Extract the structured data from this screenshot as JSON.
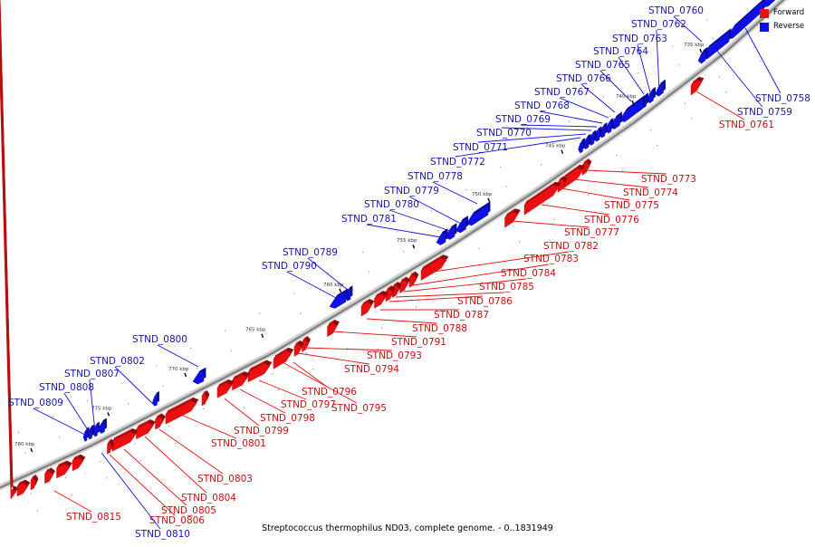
{
  "caption": "Streptococcus thermophilus ND03, complete genome. - 0..1831949",
  "legend": [
    {
      "label": "Forward",
      "color": "#e81010"
    },
    {
      "label": "Reverse",
      "color": "#1010e6"
    }
  ],
  "colors": {
    "forward": "#e81010",
    "reverse": "#1010e6",
    "backbone": "#888888",
    "forward_label": "#c41010",
    "reverse_label": "#1515b0"
  },
  "ticks": [
    {
      "label": "735 kbp",
      "pos_kbp": 735
    },
    {
      "label": "740 kbp",
      "pos_kbp": 740
    },
    {
      "label": "745 kbp",
      "pos_kbp": 745
    },
    {
      "label": "750 kbp",
      "pos_kbp": 750
    },
    {
      "label": "755 kbp",
      "pos_kbp": 755
    },
    {
      "label": "760 kbp",
      "pos_kbp": 760
    },
    {
      "label": "765 kbp",
      "pos_kbp": 765
    },
    {
      "label": "770 kbp",
      "pos_kbp": 770
    },
    {
      "label": "775 kbp",
      "pos_kbp": 775
    },
    {
      "label": "780 kbp",
      "pos_kbp": 780
    }
  ],
  "genes": [
    {
      "name": "STND_0758",
      "strand": "reverse"
    },
    {
      "name": "STND_0759",
      "strand": "reverse"
    },
    {
      "name": "STND_0760",
      "strand": "reverse"
    },
    {
      "name": "STND_0761",
      "strand": "forward"
    },
    {
      "name": "STND_0762",
      "strand": "reverse"
    },
    {
      "name": "STND_0763",
      "strand": "reverse"
    },
    {
      "name": "STND_0764",
      "strand": "reverse"
    },
    {
      "name": "STND_0765",
      "strand": "reverse"
    },
    {
      "name": "STND_0766",
      "strand": "reverse"
    },
    {
      "name": "STND_0767",
      "strand": "reverse"
    },
    {
      "name": "STND_0768",
      "strand": "reverse"
    },
    {
      "name": "STND_0769",
      "strand": "reverse"
    },
    {
      "name": "STND_0770",
      "strand": "reverse"
    },
    {
      "name": "STND_0771",
      "strand": "reverse"
    },
    {
      "name": "STND_0772",
      "strand": "reverse"
    },
    {
      "name": "STND_0773",
      "strand": "forward"
    },
    {
      "name": "STND_0774",
      "strand": "forward"
    },
    {
      "name": "STND_0775",
      "strand": "forward"
    },
    {
      "name": "STND_0776",
      "strand": "forward"
    },
    {
      "name": "STND_0777",
      "strand": "forward"
    },
    {
      "name": "STND_0778",
      "strand": "reverse"
    },
    {
      "name": "STND_0779",
      "strand": "reverse"
    },
    {
      "name": "STND_0780",
      "strand": "reverse"
    },
    {
      "name": "STND_0781",
      "strand": "reverse"
    },
    {
      "name": "STND_0782",
      "strand": "forward"
    },
    {
      "name": "STND_0783",
      "strand": "forward"
    },
    {
      "name": "STND_0784",
      "strand": "forward"
    },
    {
      "name": "STND_0785",
      "strand": "forward"
    },
    {
      "name": "STND_0786",
      "strand": "forward"
    },
    {
      "name": "STND_0787",
      "strand": "forward"
    },
    {
      "name": "STND_0788",
      "strand": "forward"
    },
    {
      "name": "STND_0789",
      "strand": "reverse"
    },
    {
      "name": "STND_0790",
      "strand": "reverse"
    },
    {
      "name": "STND_0791",
      "strand": "forward"
    },
    {
      "name": "STND_0793",
      "strand": "forward"
    },
    {
      "name": "STND_0794",
      "strand": "forward"
    },
    {
      "name": "STND_0795",
      "strand": "forward"
    },
    {
      "name": "STND_0796",
      "strand": "forward"
    },
    {
      "name": "STND_0797",
      "strand": "forward"
    },
    {
      "name": "STND_0798",
      "strand": "forward"
    },
    {
      "name": "STND_0799",
      "strand": "forward"
    },
    {
      "name": "STND_0800",
      "strand": "reverse"
    },
    {
      "name": "STND_0801",
      "strand": "forward"
    },
    {
      "name": "STND_0802",
      "strand": "reverse"
    },
    {
      "name": "STND_0803",
      "strand": "forward"
    },
    {
      "name": "STND_0804",
      "strand": "forward"
    },
    {
      "name": "STND_0805",
      "strand": "forward"
    },
    {
      "name": "STND_0806",
      "strand": "forward"
    },
    {
      "name": "STND_0807",
      "strand": "reverse"
    },
    {
      "name": "STND_0808",
      "strand": "reverse"
    },
    {
      "name": "STND_0809",
      "strand": "reverse"
    },
    {
      "name": "STND_0810",
      "strand": "reverse"
    },
    {
      "name": "STND_0815",
      "strand": "forward"
    }
  ]
}
